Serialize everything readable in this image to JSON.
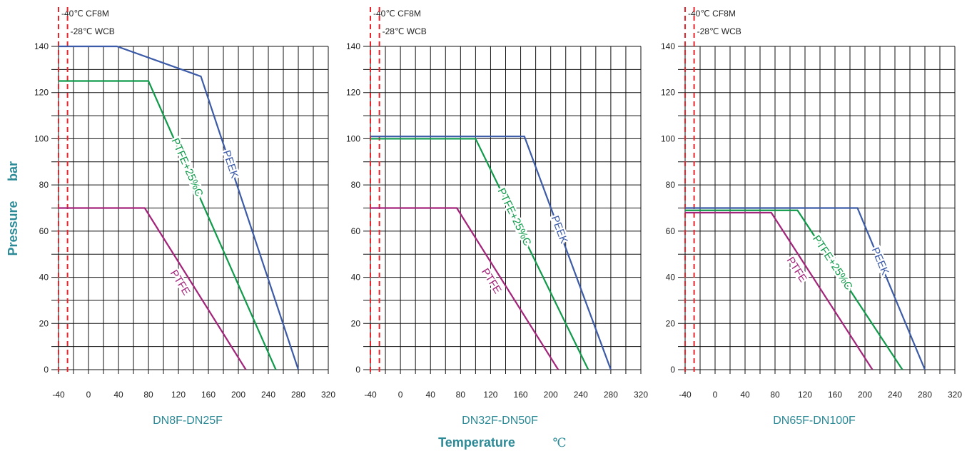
{
  "chart_data": {
    "type": "line",
    "ylabel": "Pressure",
    "ylabel_unit": "bar",
    "xlabel": "Temperature",
    "xlabel_unit": "℃",
    "colors": {
      "grid": "#111111",
      "axis_text": "#2b8a96",
      "temp_line": "#e8232a",
      "PEEK": "#3b5aa8",
      "PTFE+25%C": "#0f9a4a",
      "PTFE": "#a4237a"
    },
    "temp_limits": [
      {
        "temp": -40,
        "label": "-40℃  CF8M"
      },
      {
        "temp": -28,
        "label": "-28℃  WCB"
      }
    ],
    "xticks": [
      -40,
      0,
      40,
      80,
      120,
      160,
      200,
      240,
      280,
      320
    ],
    "yticks": [
      0,
      20,
      40,
      60,
      80,
      100,
      120,
      140
    ],
    "xlim": [
      -40,
      320
    ],
    "ylim": [
      0,
      140
    ],
    "panels": [
      {
        "title": "DN8F-DN25F",
        "series": [
          {
            "name": "PEEK",
            "points": [
              [
                -40,
                140
              ],
              [
                38,
                140
              ],
              [
                150,
                127
              ],
              [
                280,
                0
              ]
            ]
          },
          {
            "name": "PTFE+25%C",
            "points": [
              [
                -40,
                125
              ],
              [
                80,
                125
              ],
              [
                250,
                0
              ]
            ]
          },
          {
            "name": "PTFE",
            "points": [
              [
                -40,
                70
              ],
              [
                75,
                70
              ],
              [
                210,
                0
              ]
            ]
          }
        ]
      },
      {
        "title": "DN32F-DN50F",
        "series": [
          {
            "name": "PEEK",
            "points": [
              [
                -40,
                101
              ],
              [
                165,
                101
              ],
              [
                280,
                0
              ]
            ]
          },
          {
            "name": "PTFE+25%C",
            "points": [
              [
                -40,
                100
              ],
              [
                100,
                100
              ],
              [
                250,
                0
              ]
            ]
          },
          {
            "name": "PTFE",
            "points": [
              [
                -40,
                70
              ],
              [
                75,
                70
              ],
              [
                210,
                0
              ]
            ]
          }
        ]
      },
      {
        "title": "DN65F-DN100F",
        "series": [
          {
            "name": "PEEK",
            "points": [
              [
                -40,
                70
              ],
              [
                190,
                70
              ],
              [
                280,
                0
              ]
            ]
          },
          {
            "name": "PTFE+25%C",
            "points": [
              [
                -40,
                69
              ],
              [
                110,
                69
              ],
              [
                250,
                0
              ]
            ]
          },
          {
            "name": "PTFE",
            "points": [
              [
                -40,
                68
              ],
              [
                75,
                68
              ],
              [
                210,
                0
              ]
            ]
          }
        ]
      }
    ]
  }
}
